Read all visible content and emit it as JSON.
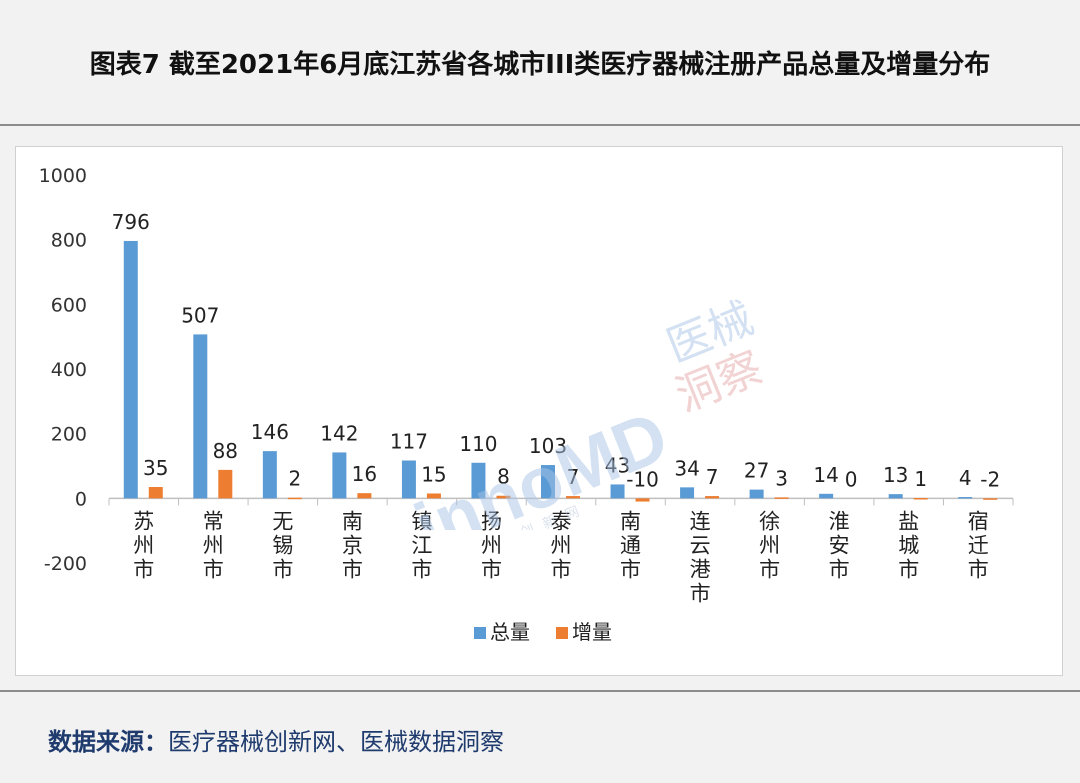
{
  "title": "图表7  截至2021年6月底江苏省各城市III类医疗器械注册产品总量及增量分布",
  "source": {
    "label": "数据来源：",
    "text": "医疗器械创新网、医械数据洞察"
  },
  "watermark": {
    "brand": "innoMD",
    "line1": "医械",
    "line2": "洞察",
    "caption": "医疗器械创新网"
  },
  "colors": {
    "total": "#5b9bd5",
    "increment": "#ed7d31"
  },
  "chart_data": {
    "type": "bar",
    "categories": [
      "苏州市",
      "常州市",
      "无锡市",
      "南京市",
      "镇江市",
      "扬州市",
      "泰州市",
      "南通市",
      "连云港市",
      "徐州市",
      "淮安市",
      "盐城市",
      "宿迁市"
    ],
    "series": [
      {
        "name": "总量",
        "values": [
          796,
          507,
          146,
          142,
          117,
          110,
          103,
          43,
          34,
          27,
          14,
          13,
          4
        ]
      },
      {
        "name": "增量",
        "values": [
          35,
          88,
          2,
          16,
          15,
          8,
          7,
          -10,
          7,
          3,
          0,
          1,
          -2
        ]
      }
    ],
    "yticks": [
      "1000",
      "800",
      "600",
      "400",
      "200",
      "0",
      "-200"
    ],
    "ylim": [
      -200,
      1000
    ],
    "grid": false,
    "legend": "bottom"
  }
}
